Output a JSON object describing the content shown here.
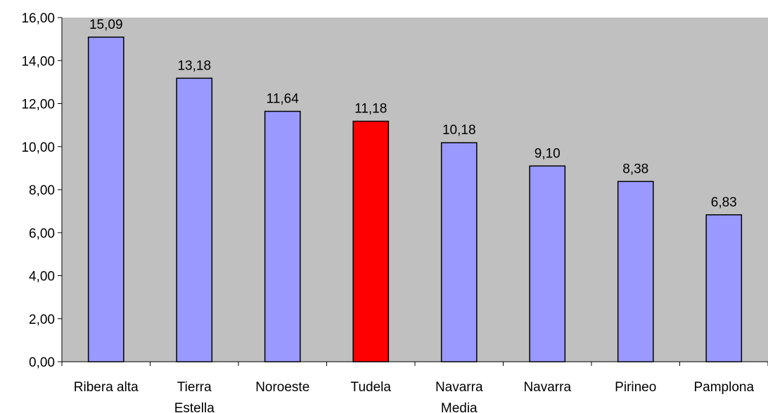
{
  "chart_data": {
    "type": "bar",
    "categories": [
      [
        "Ribera alta"
      ],
      [
        "Tierra",
        "Estella"
      ],
      [
        "Noroeste"
      ],
      [
        "Tudela"
      ],
      [
        "Navarra",
        "Media"
      ],
      [
        "Navarra"
      ],
      [
        "Pirineo"
      ],
      [
        "Pamplona"
      ]
    ],
    "values": [
      15.09,
      13.18,
      11.64,
      11.18,
      10.18,
      9.1,
      8.38,
      6.83
    ],
    "data_labels": [
      "15,09",
      "13,18",
      "11,64",
      "11,18",
      "10,18",
      "9,10",
      "8,38",
      "6,83"
    ],
    "ylim": [
      0,
      16
    ],
    "yticks": [
      0,
      2,
      4,
      6,
      8,
      10,
      12,
      14,
      16
    ],
    "ytick_labels": [
      "0,00",
      "2,00",
      "4,00",
      "6,00",
      "8,00",
      "10,00",
      "12,00",
      "14,00",
      "16,00"
    ],
    "grid": false,
    "colors": {
      "plot_background": "#c0c0c0",
      "bar_default": "#9999ff",
      "bar_highlight": "#ff0000",
      "bar_border": "#000000"
    },
    "highlight_index": 3
  }
}
